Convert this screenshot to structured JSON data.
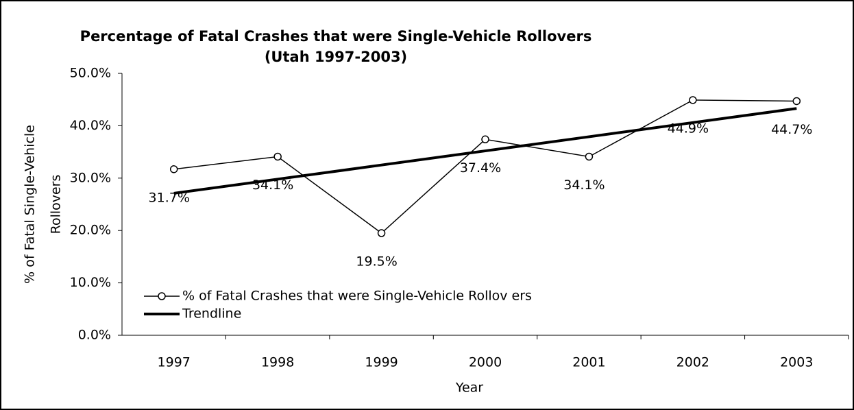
{
  "chart_data": {
    "type": "line",
    "title": "Percentage of Fatal Crashes that were Single-Vehicle Rollovers",
    "subtitle": "(Utah 1997-2003)",
    "x_label": "Year",
    "y_label": [
      "% of Fatal Single-Vehicle",
      "Rollovers"
    ],
    "categories": [
      "1997",
      "1998",
      "1999",
      "2000",
      "2001",
      "2002",
      "2003"
    ],
    "series": [
      {
        "name": "% of Fatal Crashes that were Single-Vehicle Rollov ers",
        "color": "#000000",
        "values": [
          31.7,
          34.1,
          19.5,
          37.4,
          34.1,
          44.9,
          44.7
        ],
        "value_labels": [
          "31.7%",
          "34.1%",
          "19.5%",
          "37.4%",
          "34.1%",
          "44.9%",
          "44.7%"
        ]
      },
      {
        "name": "Trendline",
        "color": "#000000",
        "values": [
          27.1,
          29.8,
          32.5,
          35.2,
          37.9,
          40.6,
          43.3
        ]
      }
    ],
    "ylim": [
      0,
      50
    ],
    "yticks": [
      {
        "value": 0,
        "label": "0.0%"
      },
      {
        "value": 10,
        "label": "10.0%"
      },
      {
        "value": 20,
        "label": "20.0%"
      },
      {
        "value": 30,
        "label": "30.0%"
      },
      {
        "value": 40,
        "label": "40.0%"
      },
      {
        "value": 50,
        "label": "50.0%"
      }
    ],
    "legend": "lower left"
  }
}
